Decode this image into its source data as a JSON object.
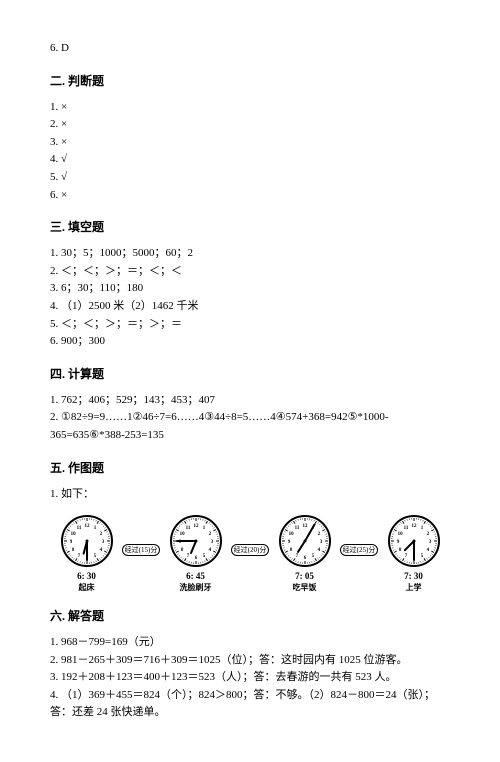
{
  "top_answer": "6. D",
  "sections": {
    "s2": {
      "title": "二. 判断题",
      "items": [
        "1. ×",
        "2. ×",
        "3. ×",
        "4. √",
        "5. √",
        "6. ×"
      ]
    },
    "s3": {
      "title": "三. 填空题",
      "items": [
        "1. 30；5；1000；5000；60；2",
        "2. ＜；＜；＞；＝；＜；＜",
        "3. 6；30；110；180",
        "4. （1）2500 米（2）1462 千米",
        "5. ＜；＜；＞；＝；＞；＝",
        "6. 900；300"
      ]
    },
    "s4": {
      "title": "四. 计算题",
      "items": [
        "1. 762；406；529；143；453；407",
        "2. ①82÷9=9……1②46÷7=6……4③44÷8=5……4④574+368=942⑤*1000-365=635⑥*388-253=135"
      ]
    },
    "s5": {
      "title": "五. 作图题",
      "lead": "1. 如下：",
      "clocks": [
        {
          "time": "6: 30",
          "label": "起床",
          "hour_angle": 195,
          "min_angle": 180
        },
        {
          "time": "6: 45",
          "label": "洗脸刷牙",
          "hour_angle": 202.5,
          "min_angle": 270
        },
        {
          "time": "7: 05",
          "label": "吃早饭",
          "hour_angle": 212.5,
          "min_angle": 30
        },
        {
          "time": "7: 30",
          "label": "上学",
          "hour_angle": 225,
          "min_angle": 180
        }
      ],
      "arrows": [
        {
          "text": "经过(15)分"
        },
        {
          "text": "经过(20)分"
        },
        {
          "text": "经过(25)分"
        }
      ]
    },
    "s6": {
      "title": "六. 解答题",
      "items": [
        "1. 968－799=169（元）",
        "2. 981－265＋309＝716＋309＝1025（位）；答：这时园内有 1025 位游客。",
        "3. 192＋208＋123＝400＋123＝523（人）；答：去春游的一共有 523 人。",
        "4. （1）369＋455＝824（个）；824＞800；答：不够。（2）824－800＝24（张）；答：还差 24 张快递单。"
      ]
    }
  },
  "clock_style": {
    "face_fill": "#ffffff",
    "face_stroke": "#000000",
    "face_stroke_width": 2,
    "tick_color": "#000000",
    "number_font_size": 5,
    "hand_color": "#000000",
    "hour_hand_len": 13,
    "min_hand_len": 19,
    "hand_width": 2
  }
}
